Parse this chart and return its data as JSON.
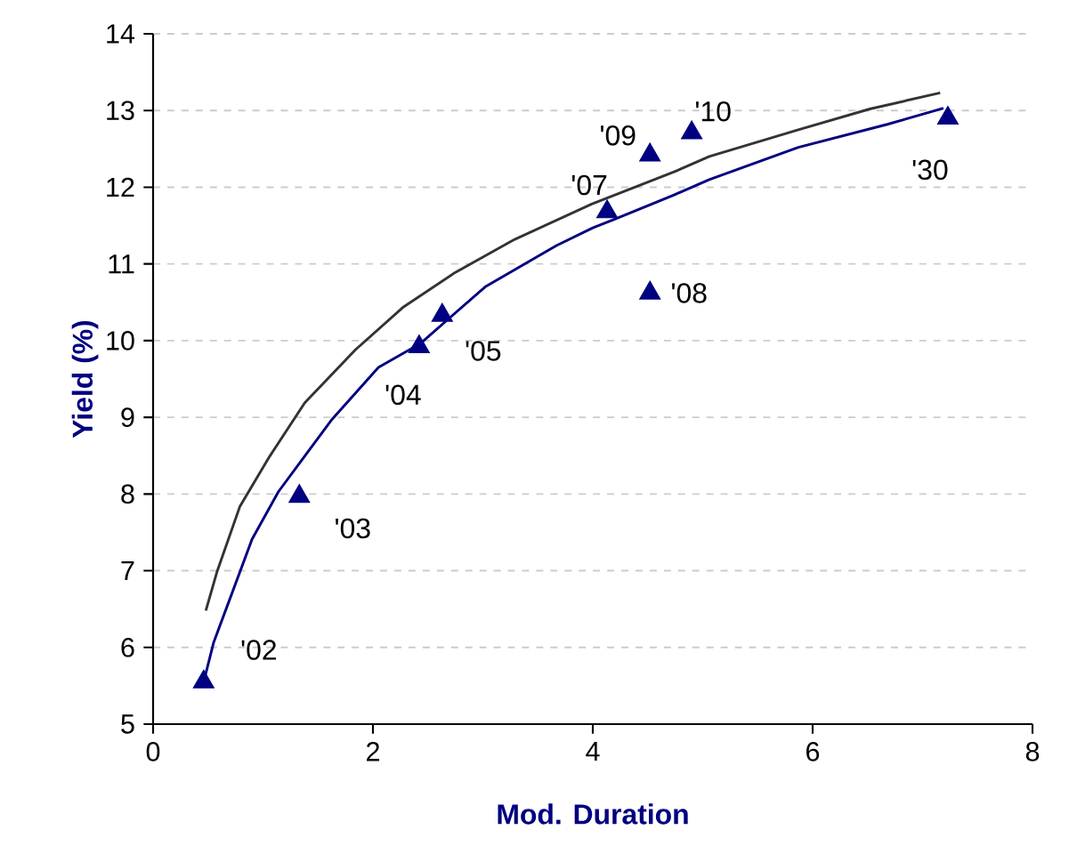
{
  "chart_data": {
    "type": "scatter",
    "xlabel": "Mod. Duration",
    "ylabel": "Yield (%)",
    "xlim": [
      0,
      8
    ],
    "ylim": [
      5,
      14
    ],
    "xticks": [
      0,
      2,
      4,
      6,
      8
    ],
    "yticks": [
      5,
      6,
      7,
      8,
      9,
      10,
      11,
      12,
      13,
      14
    ],
    "grid": "y",
    "series": [
      {
        "type": "line",
        "color": "#000080",
        "marker": "none",
        "line_style": "solid",
        "x": [
          0.46,
          0.55,
          0.9,
          1.14,
          1.62,
          2.05,
          2.43,
          3.02,
          3.67,
          4.0,
          4.21,
          4.74,
          5.06,
          5.87,
          6.68,
          7.19
        ],
        "values": [
          5.55,
          6.06,
          7.41,
          8.03,
          8.96,
          9.65,
          9.96,
          10.7,
          11.24,
          11.47,
          11.59,
          11.9,
          12.1,
          12.52,
          12.82,
          13.03
        ]
      },
      {
        "type": "line",
        "color": "#333333",
        "marker": "none",
        "line_style": "solid",
        "x": [
          0.48,
          0.58,
          0.79,
          1.06,
          1.38,
          1.84,
          2.27,
          2.75,
          3.29,
          3.99,
          4.74,
          5.06,
          5.87,
          6.52,
          7.16
        ],
        "values": [
          6.48,
          6.98,
          7.84,
          8.49,
          9.19,
          9.88,
          10.43,
          10.89,
          11.32,
          11.78,
          12.2,
          12.4,
          12.75,
          13.02,
          13.23
        ]
      },
      {
        "color": "#000080",
        "marker": "triangle",
        "x": [
          0.46,
          1.33,
          2.42,
          2.63,
          4.13,
          4.52,
          4.9,
          4.52,
          7.23
        ],
        "values": [
          5.55,
          7.97,
          9.92,
          10.33,
          11.68,
          12.42,
          12.71,
          10.62,
          12.9
        ]
      }
    ],
    "annotations": [
      {
        "text": "'02",
        "x": 0.46,
        "y": 5.55
      },
      {
        "text": "'03",
        "x": 1.33,
        "y": 7.97
      },
      {
        "text": "'04",
        "x": 2.42,
        "y": 9.92
      },
      {
        "text": "'05",
        "x": 2.63,
        "y": 10.33
      },
      {
        "text": "'07",
        "x": 4.13,
        "y": 11.68
      },
      {
        "text": "'09",
        "x": 4.52,
        "y": 12.42
      },
      {
        "text": "'10",
        "x": 4.9,
        "y": 12.71
      },
      {
        "text": "'08",
        "x": 4.52,
        "y": 10.62
      },
      {
        "text": "'30",
        "x": 7.23,
        "y": 12.9
      }
    ]
  }
}
